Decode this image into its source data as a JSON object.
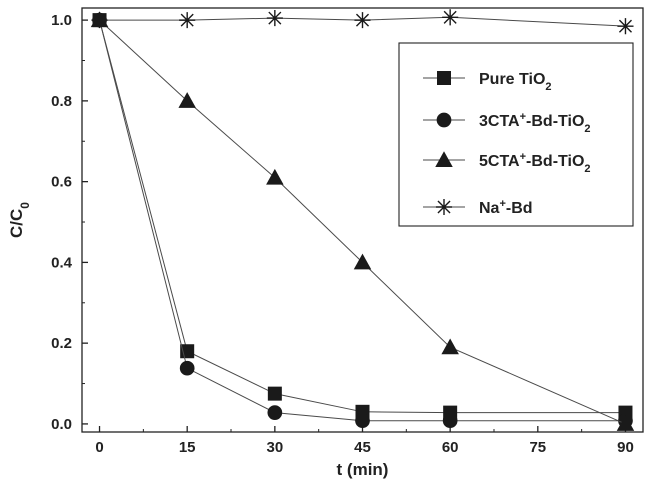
{
  "chart_data": {
    "type": "line",
    "xlabel": "t (min)",
    "ylabel": {
      "main": "C/C",
      "sub": "0"
    },
    "xlim": [
      -3,
      93
    ],
    "ylim": [
      -0.02,
      1.03
    ],
    "xticks": [
      0,
      15,
      30,
      45,
      60,
      75,
      90
    ],
    "yticks": [
      0.0,
      0.2,
      0.4,
      0.6,
      0.8,
      1.0
    ],
    "ytick_labels": [
      "0.0",
      "0.2",
      "0.4",
      "0.6",
      "0.8",
      "1.0"
    ],
    "grid": false,
    "legend_position": "top-right",
    "series": [
      {
        "name": "Pure TiO2",
        "legend_label": [
          {
            "t": "Pure TiO"
          },
          {
            "t": "2",
            "sub": true
          }
        ],
        "marker": "square",
        "color": "#222222",
        "x": [
          0,
          15,
          30,
          45,
          60,
          90
        ],
        "values": [
          1.0,
          0.18,
          0.075,
          0.03,
          0.028,
          0.028
        ]
      },
      {
        "name": "3CTA+-Bd-TiO2",
        "legend_label": [
          {
            "t": "3CTA"
          },
          {
            "t": "+",
            "sup": true
          },
          {
            "t": "-Bd-TiO"
          },
          {
            "t": "2",
            "sub": true
          }
        ],
        "marker": "circle",
        "color": "#222222",
        "x": [
          0,
          15,
          30,
          45,
          60,
          90
        ],
        "values": [
          1.0,
          0.138,
          0.028,
          0.008,
          0.008,
          0.008
        ]
      },
      {
        "name": "5CTA+-Bd-TiO2",
        "legend_label": [
          {
            "t": "5CTA"
          },
          {
            "t": "+",
            "sup": true
          },
          {
            "t": "-Bd-TiO"
          },
          {
            "t": "2",
            "sub": true
          }
        ],
        "marker": "triangle",
        "color": "#222222",
        "x": [
          0,
          15,
          30,
          45,
          60,
          90
        ],
        "values": [
          1.0,
          0.8,
          0.61,
          0.4,
          0.19,
          0.0
        ]
      },
      {
        "name": "Na+-Bd",
        "legend_label": [
          {
            "t": "Na"
          },
          {
            "t": "+",
            "sup": true
          },
          {
            "t": "-Bd"
          }
        ],
        "marker": "star",
        "color": "#222222",
        "x": [
          0,
          15,
          30,
          45,
          60,
          90
        ],
        "values": [
          1.0,
          1.0,
          1.005,
          1.0,
          1.007,
          0.985
        ]
      }
    ]
  }
}
